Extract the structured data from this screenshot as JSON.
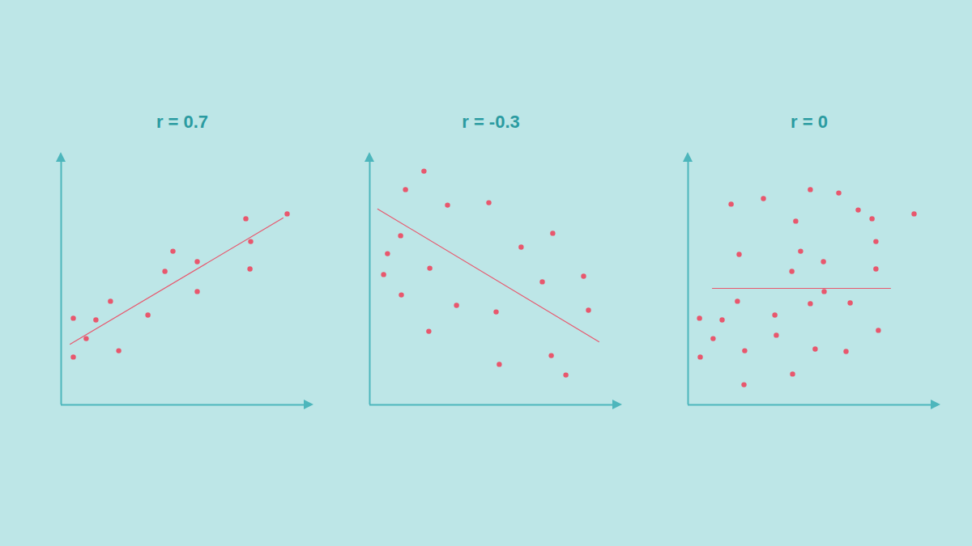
{
  "chart_data": [
    {
      "type": "scatter",
      "title": "r = 0.7",
      "color": "#e8576d",
      "x": [
        0.5,
        0.5,
        1.03,
        1.43,
        2.03,
        2.37,
        3.57,
        4.27,
        4.6,
        5.6,
        5.6,
        7.6,
        7.8,
        7.77,
        9.3
      ],
      "y": [
        3.57,
        1.97,
        2.73,
        3.5,
        4.27,
        2.23,
        3.7,
        5.5,
        6.33,
        5.9,
        4.67,
        7.67,
        6.73,
        5.6,
        7.87
      ],
      "fit_line": {
        "x": [
          0.37,
          9.13
        ],
        "y": [
          2.5,
          7.7
        ]
      },
      "xlim": [
        0,
        10
      ],
      "ylim": [
        0,
        10
      ],
      "tick_labels": false
    },
    {
      "type": "scatter",
      "title": "r = -0.3",
      "color": "#e8576d",
      "x": [
        2.23,
        1.47,
        1.27,
        0.73,
        0.57,
        1.3,
        2.47,
        3.2,
        2.43,
        3.57,
        4.9,
        5.2,
        5.33,
        6.23,
        7.1,
        7.53,
        7.47,
        8.07,
        8.8,
        9.0
      ],
      "y": [
        9.63,
        8.87,
        6.97,
        6.23,
        5.37,
        4.53,
        5.63,
        8.23,
        3.03,
        4.1,
        8.33,
        3.83,
        1.67,
        6.5,
        5.07,
        7.07,
        2.03,
        1.23,
        5.3,
        3.9
      ],
      "fit_line": {
        "x": [
          0.33,
          9.43
        ],
        "y": [
          8.07,
          2.6
        ]
      },
      "xlim": [
        0,
        10
      ],
      "ylim": [
        0,
        10
      ],
      "tick_labels": false
    },
    {
      "type": "scatter",
      "title": "r = 0",
      "color": "#e8576d",
      "x": [
        1.77,
        3.1,
        5.03,
        6.2,
        7.0,
        7.57,
        9.3,
        4.43,
        2.1,
        4.63,
        5.57,
        4.27,
        7.73,
        7.73,
        0.47,
        1.03,
        1.4,
        2.03,
        3.57,
        5.03,
        5.6,
        6.67,
        3.63,
        0.5,
        2.33,
        5.23,
        6.5,
        7.83,
        2.3,
        4.3
      ],
      "y": [
        8.27,
        8.5,
        8.87,
        8.73,
        8.03,
        7.67,
        7.87,
        7.57,
        6.2,
        6.33,
        5.9,
        5.5,
        6.73,
        5.6,
        3.57,
        2.73,
        3.5,
        4.27,
        3.7,
        4.17,
        4.67,
        4.2,
        2.87,
        1.97,
        2.23,
        2.3,
        2.2,
        3.07,
        0.83,
        1.27
      ],
      "fit_line": {
        "x": [
          1.0,
          8.33
        ],
        "y": [
          4.8,
          4.8
        ]
      },
      "xlim": [
        0,
        10
      ],
      "ylim": [
        0,
        10
      ],
      "tick_labels": false
    }
  ]
}
